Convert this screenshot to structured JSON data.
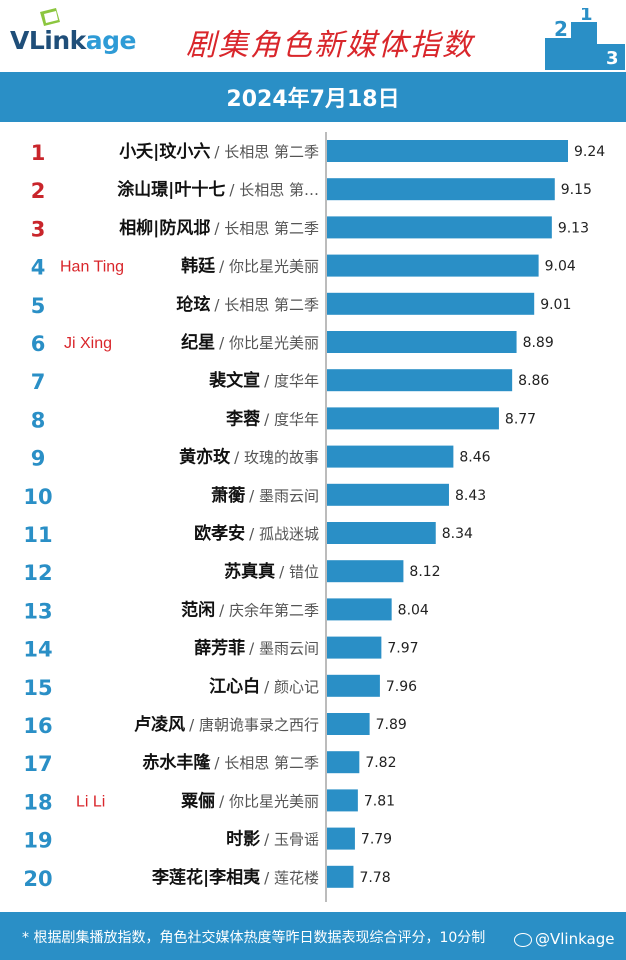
{
  "header": {
    "logo_text_1": "VLink",
    "logo_text_2": "age",
    "title": "剧集角色新媒体指数",
    "date": "2024年7月18日"
  },
  "footer": {
    "note": "* 根据剧集播放指数，角色社交媒体热度等昨日数据表现综合评分，10分制",
    "watermark": "@Vlinkage"
  },
  "colors": {
    "bar": "#2a8fc6",
    "rank_top3": "#c9252b",
    "rank_other": "#2a8fc6",
    "annotation": "#d9262b",
    "header_blue": "#2a8fc6"
  },
  "chart_data": {
    "type": "bar",
    "orientation": "horizontal",
    "grid": false,
    "ranks": [
      "1",
      "2",
      "3",
      "4",
      "5",
      "6",
      "7",
      "8",
      "9",
      "10",
      "11",
      "12",
      "13",
      "14",
      "15",
      "16",
      "17",
      "18",
      "19",
      "20"
    ],
    "characters": [
      "小夭|玟小六",
      "涂山璟|叶十七",
      "相柳|防风邶",
      "韩廷",
      "玱玹",
      "纪星",
      "裴文宣",
      "李蓉",
      "黄亦玫",
      "萧蘅",
      "欧孝安",
      "苏真真",
      "范闲",
      "薛芳菲",
      "江心白",
      "卢凌风",
      "赤水丰隆",
      "粟俪",
      "时影",
      "李莲花|李相夷"
    ],
    "dramas": [
      "/ 长相思 第二季",
      "/ 长相思 第…",
      "/ 长相思 第二季",
      "/ 你比星光美丽",
      "/ 长相思 第二季",
      "/ 你比星光美丽",
      "/ 度华年",
      "/ 度华年",
      "/ 玫瑰的故事",
      "/ 墨雨云间",
      "/ 孤战迷城",
      "/ 错位",
      "/ 庆余年第二季",
      "/ 墨雨云间",
      "/ 颜心记",
      "/ 唐朝诡事录之西行",
      "/ 长相思 第二季",
      "/ 你比星光美丽",
      "/ 玉骨谣",
      "/ 莲花楼"
    ],
    "values": [
      9.24,
      9.15,
      9.13,
      9.04,
      9.01,
      8.89,
      8.86,
      8.77,
      8.46,
      8.43,
      8.34,
      8.12,
      8.04,
      7.97,
      7.96,
      7.89,
      7.82,
      7.81,
      7.79,
      7.78
    ],
    "value_labels": [
      "9.24",
      "9.15",
      "9.13",
      "9.04",
      "9.01",
      "8.89",
      "8.86",
      "8.77",
      "8.46",
      "8.43",
      "8.34",
      "8.12",
      "8.04",
      "7.97",
      "7.96",
      "7.89",
      "7.82",
      "7.81",
      "7.79",
      "7.78"
    ],
    "annotations": [
      {
        "rank_index": 3,
        "text": "Han Ting"
      },
      {
        "rank_index": 5,
        "text": "Ji Xing"
      },
      {
        "rank_index": 17,
        "text": "Li Li"
      }
    ]
  }
}
